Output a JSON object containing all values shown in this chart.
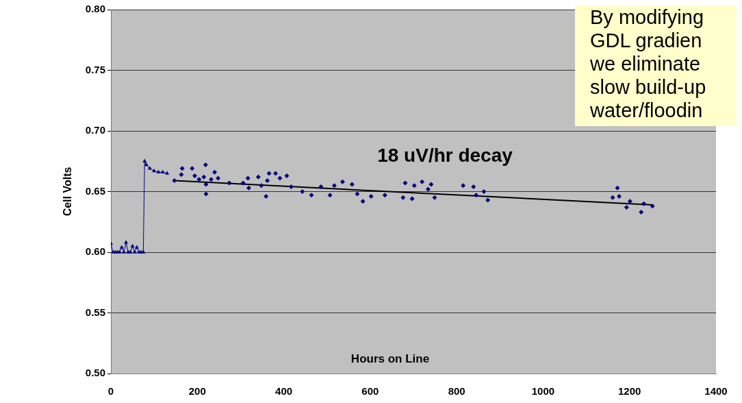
{
  "chart_data": {
    "type": "scatter",
    "xlabel": "Hours on Line",
    "ylabel": "Cell Volts",
    "xlim": [
      0,
      1400
    ],
    "xticks": [
      0,
      200,
      400,
      600,
      800,
      1000,
      1200,
      1400
    ],
    "ylim": [
      0.5,
      0.8
    ],
    "yticks": [
      {
        "value": 0.5,
        "label": "0.50"
      },
      {
        "value": 0.55,
        "label": "0.55"
      },
      {
        "value": 0.6,
        "label": "0.60"
      },
      {
        "value": 0.65,
        "label": "0.65"
      },
      {
        "value": 0.7,
        "label": "0.70"
      },
      {
        "value": 0.75,
        "label": "0.75"
      },
      {
        "value": 0.8,
        "label": "0.80"
      }
    ],
    "grid": "y",
    "legend": false,
    "series": [
      {
        "type": "line",
        "marker": "triangle",
        "color": "#000080",
        "x": [
          0,
          5,
          10,
          15,
          20,
          25,
          30,
          35,
          40,
          45,
          50,
          55,
          60,
          65,
          70,
          75,
          78,
          82,
          90,
          100,
          110,
          120,
          130
        ],
        "values": [
          0.607,
          0.6,
          0.6,
          0.6,
          0.6,
          0.604,
          0.6,
          0.608,
          0.6,
          0.6,
          0.605,
          0.6,
          0.604,
          0.6,
          0.6,
          0.6,
          0.675,
          0.672,
          0.669,
          0.667,
          0.666,
          0.666,
          0.665
        ]
      },
      {
        "marker": "diamond",
        "color": "#000080",
        "x": [
          147,
          163,
          165,
          188,
          194,
          204,
          215,
          219,
          220,
          220,
          232,
          240,
          248,
          274,
          306,
          317,
          319,
          341,
          348,
          359,
          362,
          366,
          381,
          391,
          407,
          417,
          443,
          464,
          486,
          507,
          517,
          536,
          558,
          570,
          583,
          602,
          634,
          676,
          681,
          697,
          702,
          720,
          734,
          741,
          749,
          815,
          839,
          845,
          863,
          872,
          1161,
          1172,
          1176,
          1193,
          1201,
          1227,
          1233,
          1253
        ],
        "values": [
          0.659,
          0.664,
          0.669,
          0.669,
          0.663,
          0.66,
          0.662,
          0.672,
          0.656,
          0.648,
          0.66,
          0.666,
          0.661,
          0.657,
          0.657,
          0.661,
          0.653,
          0.662,
          0.655,
          0.646,
          0.659,
          0.665,
          0.665,
          0.661,
          0.663,
          0.654,
          0.65,
          0.647,
          0.654,
          0.647,
          0.655,
          0.658,
          0.656,
          0.648,
          0.642,
          0.646,
          0.647,
          0.645,
          0.657,
          0.644,
          0.655,
          0.658,
          0.652,
          0.656,
          0.645,
          0.655,
          0.654,
          0.647,
          0.65,
          0.643,
          0.645,
          0.653,
          0.646,
          0.637,
          0.642,
          0.633,
          0.64,
          0.638
        ]
      },
      {
        "type": "line",
        "marker": "none",
        "color": "#000000",
        "x": [
          147,
          1255
        ],
        "values": [
          0.659,
          0.639
        ]
      }
    ],
    "annotations": [
      "18 uV/hr decay",
      "By modifying\nGDL gradien\nwe eliminate\nslow build-up\nwater/floodin"
    ]
  }
}
